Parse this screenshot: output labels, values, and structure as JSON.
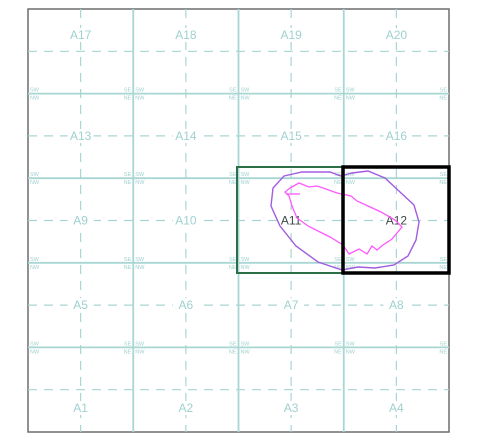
{
  "map": {
    "grid_labels": [
      [
        "A17",
        "A18",
        "A19",
        "A20"
      ],
      [
        "A13",
        "A14",
        "A15",
        "A16"
      ],
      [
        "A9",
        "A10",
        "A11",
        "A12"
      ],
      [
        "A5",
        "A6",
        "A7",
        "A8"
      ],
      [
        "A1",
        "A2",
        "A3",
        "A4"
      ]
    ],
    "corner_tags": {
      "se": "SE",
      "sw": "SW",
      "ne": "NE",
      "nw": "NW"
    },
    "selected_tiles": [
      "A11",
      "A12"
    ],
    "active_tile": "A12",
    "colors": {
      "grid": "#a8d6d3",
      "label": "#9fd1cf",
      "selection": "#2c6e45",
      "active": "#000000",
      "outer_shape": "#a35ce0",
      "inner_shape": "#ff58ff"
    }
  }
}
